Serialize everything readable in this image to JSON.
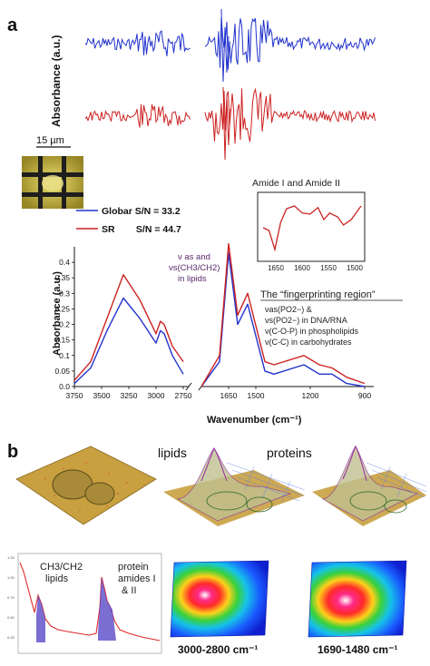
{
  "panel_a": {
    "letter": "a",
    "scale_bar_label": "15 µm",
    "top_y_label": "Absorbance (a.u.)",
    "legend": [
      {
        "label": "Globar S/N = 33.2",
        "color": "#2233cc"
      },
      {
        "label": "SR        S/N = 44.7",
        "color": "#cc2222"
      }
    ],
    "inset_title": "Amide I and Amide II",
    "inset_ticks": [
      "1650",
      "1600",
      "1550",
      "1500"
    ],
    "annotation_lipids": [
      "ν as and",
      "νs(CH3/CH2)",
      "in lipids"
    ],
    "fingerprint_title": "The “fingerprinting region”",
    "fingerprint_lines": [
      "νas(PO2−) &",
      "νs(PO2−) in DNA/RNA",
      "ν(C-O-P)  in phospholipids",
      "ν(C-C)  in carbohydrates"
    ],
    "y_label": "Absorbance (a.u.)",
    "x_label": "Wavenumber (cm⁻¹)",
    "y_ticks": [
      "0.0",
      "0.05",
      "0.1",
      "0.15",
      "0.2",
      "0.25",
      "0.3",
      "0.35",
      "0.4"
    ],
    "x_ticks": [
      "3750",
      "3500",
      "3250",
      "3000",
      "2750",
      "1650",
      "1500",
      "1200",
      "900"
    ]
  },
  "panel_b": {
    "letter": "b",
    "label_lipids": "lipids",
    "label_proteins": "proteins",
    "spectrum_label_lipids": [
      "CH3/CH2",
      "lipids"
    ],
    "spectrum_label_proteins": [
      "protein",
      "amides I",
      "& II"
    ],
    "range_lipids": "3000-2800 cm⁻¹",
    "range_proteins": "1690-1480 cm⁻¹"
  },
  "chart_data": {
    "type": "line",
    "x_unit": "cm-1",
    "y_range": [
      0,
      0.45
    ],
    "x_range": [
      3750,
      900
    ],
    "series": [
      {
        "name": "Globar S/N = 33.2",
        "color": "#2233cc",
        "x": [
          3750,
          3600,
          3450,
          3300,
          3150,
          3000,
          2960,
          2925,
          2850,
          2750,
          1800,
          1700,
          1650,
          1600,
          1545,
          1450,
          1400,
          1235,
          1150,
          1080,
          1000,
          900
        ],
        "y": [
          0.01,
          0.06,
          0.18,
          0.285,
          0.22,
          0.14,
          0.18,
          0.17,
          0.1,
          0.04,
          0.0,
          0.08,
          0.43,
          0.2,
          0.265,
          0.05,
          0.04,
          0.07,
          0.04,
          0.04,
          0.01,
          0.0
        ]
      },
      {
        "name": "SR S/N = 44.7",
        "color": "#cc2222",
        "x": [
          3750,
          3600,
          3450,
          3300,
          3150,
          3000,
          2960,
          2925,
          2850,
          2750,
          1800,
          1700,
          1650,
          1600,
          1545,
          1450,
          1400,
          1235,
          1150,
          1080,
          1000,
          900
        ],
        "y": [
          0.02,
          0.08,
          0.22,
          0.36,
          0.28,
          0.17,
          0.21,
          0.2,
          0.13,
          0.08,
          0.0,
          0.1,
          0.46,
          0.23,
          0.3,
          0.08,
          0.07,
          0.1,
          0.07,
          0.06,
          0.03,
          0.01
        ]
      }
    ]
  }
}
